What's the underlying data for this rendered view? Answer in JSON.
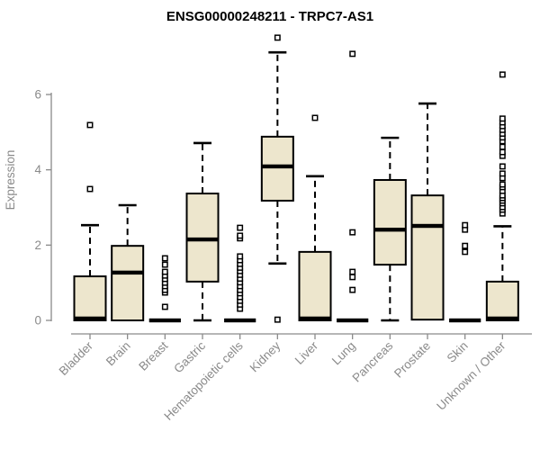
{
  "title": "ENSG00000248211 - TRPC7-AS1",
  "chart_data": {
    "type": "boxplot",
    "title": "ENSG00000248211 - TRPC7-AS1",
    "ylabel": "Expression",
    "xlabel": "",
    "yticks": [
      0,
      2,
      4,
      6
    ],
    "ylim": [
      0,
      7.7
    ],
    "grid": false,
    "legend": "none",
    "box_fill": "#EDE6CD",
    "box_stroke": "#000000",
    "median_color": "#000000",
    "whisker_color": "#000000",
    "outlier_fill": "#ffffff",
    "axis_color": "#8a8a8a",
    "title_color": "#000000",
    "categories": [
      "Bladder",
      "Brain",
      "Breast",
      "Gastric",
      "Hematopoietic cells",
      "Kidney",
      "Liver",
      "Lung",
      "Pancreas",
      "Prostate",
      "Skin",
      "Unknown / Other"
    ],
    "boxes": [
      {
        "category": "Bladder",
        "whisker_low": 0,
        "q1": 0,
        "median": 0.05,
        "q3": 1.17,
        "whisker_high": 2.53,
        "outliers": [
          3.49,
          5.19
        ]
      },
      {
        "category": "Brain",
        "whisker_low": 0,
        "q1": 0,
        "median": 1.27,
        "q3": 1.98,
        "whisker_high": 3.06,
        "outliers": []
      },
      {
        "category": "Breast",
        "whisker_low": 0,
        "q1": 0,
        "median": 0,
        "q3": 0,
        "whisker_high": 0,
        "outliers": [
          0.36,
          0.74,
          0.81,
          0.91,
          1.0,
          1.1,
          1.19,
          1.29,
          1.48,
          1.65
        ]
      },
      {
        "category": "Gastric",
        "whisker_low": 0,
        "q1": 1.03,
        "median": 2.15,
        "q3": 3.37,
        "whisker_high": 4.71,
        "outliers": []
      },
      {
        "category": "Hematopoietic cells",
        "whisker_low": 0,
        "q1": 0,
        "median": 0,
        "q3": 0,
        "whisker_high": 0,
        "outliers": [
          0.31,
          0.42,
          0.52,
          0.62,
          0.72,
          0.81,
          0.91,
          1.01,
          1.11,
          1.21,
          1.31,
          1.4,
          1.5,
          1.6,
          1.7,
          2.18,
          2.25,
          2.46
        ]
      },
      {
        "category": "Kidney",
        "whisker_low": 1.51,
        "q1": 3.18,
        "median": 4.09,
        "q3": 4.88,
        "whisker_high": 7.12,
        "outliers": [
          0.02,
          7.51
        ]
      },
      {
        "category": "Liver",
        "whisker_low": 0,
        "q1": 0,
        "median": 0.05,
        "q3": 1.82,
        "whisker_high": 3.83,
        "outliers": [
          5.38
        ]
      },
      {
        "category": "Lung",
        "whisker_low": 0,
        "q1": 0,
        "median": 0,
        "q3": 0,
        "whisker_high": 0,
        "outliers": [
          0.81,
          1.15,
          1.29,
          2.34,
          7.08
        ]
      },
      {
        "category": "Pancreas",
        "whisker_low": 0,
        "q1": 1.48,
        "median": 2.41,
        "q3": 3.73,
        "whisker_high": 4.85,
        "outliers": []
      },
      {
        "category": "Prostate",
        "whisker_low": 0.02,
        "q1": 0.02,
        "median": 2.51,
        "q3": 3.32,
        "whisker_high": 5.76,
        "outliers": []
      },
      {
        "category": "Skin",
        "whisker_low": 0,
        "q1": 0,
        "median": 0,
        "q3": 0,
        "whisker_high": 0,
        "outliers": [
          1.82,
          1.98,
          2.41,
          2.53
        ]
      },
      {
        "category": "Unknown / Other",
        "whisker_low": 0,
        "q1": 0,
        "median": 0.05,
        "q3": 1.03,
        "whisker_high": 2.5,
        "outliers": [
          2.84,
          2.94,
          3.01,
          3.11,
          3.18,
          3.25,
          3.32,
          3.44,
          3.54,
          3.61,
          3.78,
          3.9,
          4.09,
          4.37,
          4.47,
          4.61,
          4.76,
          4.86,
          4.96,
          5.06,
          5.16,
          5.26,
          5.36,
          6.53
        ]
      }
    ]
  }
}
